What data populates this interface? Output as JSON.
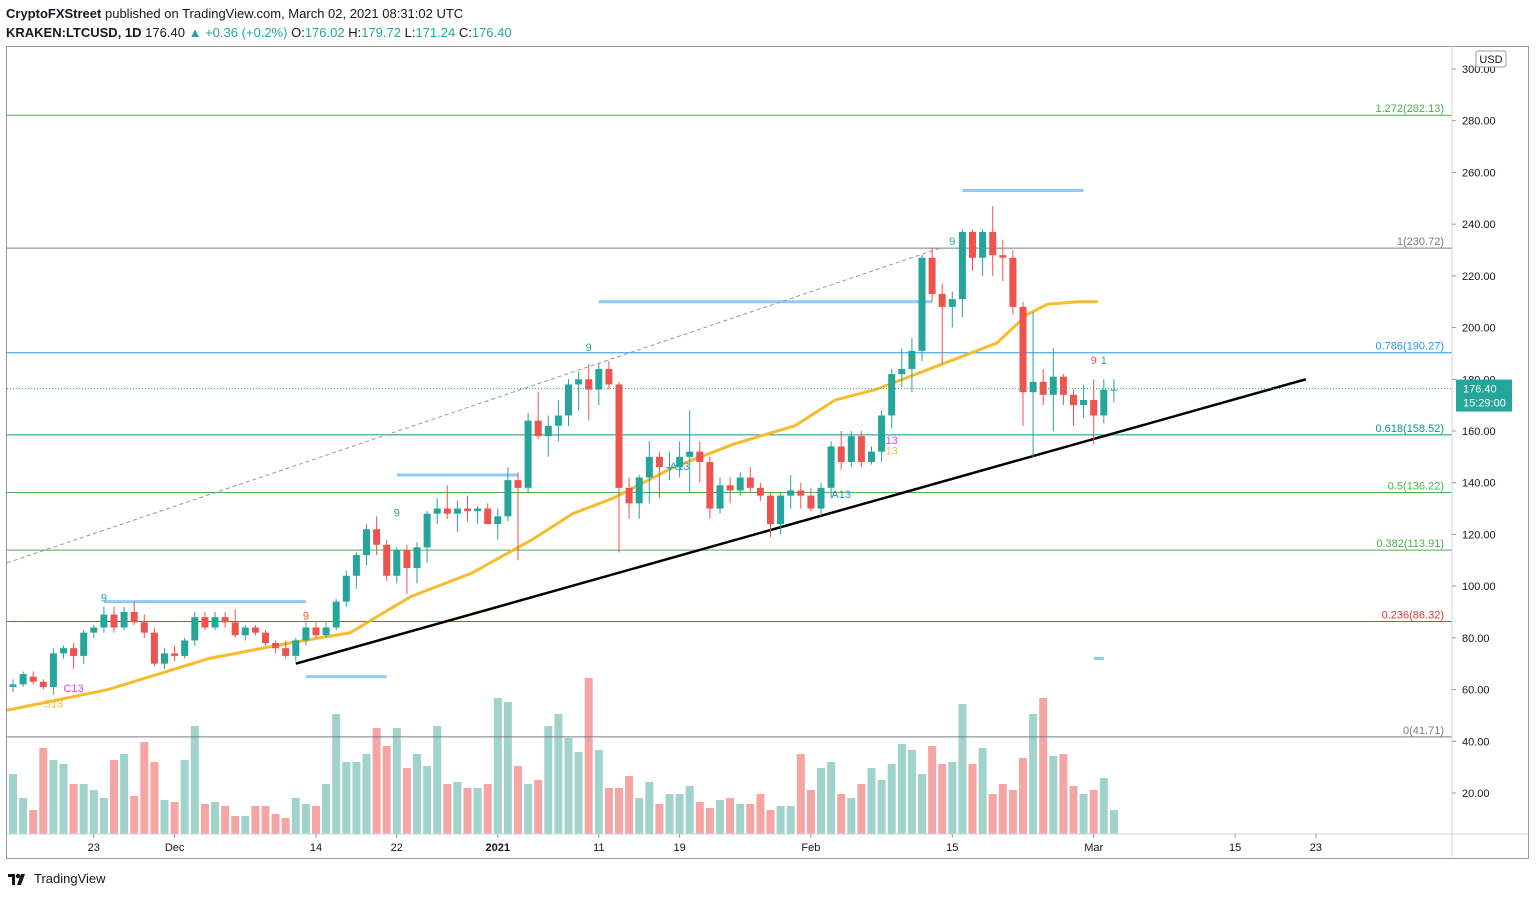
{
  "header": {
    "publisher": "CryptoFXStreet",
    "published_text": "published on TradingView.com, March 02, 2021 08:31:02 UTC",
    "symbol": "KRAKEN:LTCUSD, 1D",
    "last": "176.40",
    "change": "+0.36 (+0.2%)",
    "o_label": "O:",
    "o": "176.02",
    "h_label": "H:",
    "h": "179.72",
    "l_label": "L:",
    "l": "171.24",
    "c_label": "C:",
    "c": "176.40"
  },
  "footer": {
    "brand": "TradingView",
    "logo_icon": "tradingview-logo-icon"
  },
  "colors": {
    "up": "#26a69a",
    "down": "#ef5350",
    "ma": "#f7bb2d",
    "trend": "#000000",
    "fib_green": "#4caf50",
    "fib_blue": "#2196f3",
    "fib_red": "#e53935",
    "fib_gray": "#787b86",
    "teal": "#089981",
    "box": "#90caf9"
  },
  "chart_data": {
    "type": "candlestick",
    "currency_label": "USD",
    "ylim": [
      0,
      305
    ],
    "y_ticks": [
      20,
      40,
      60,
      80,
      100,
      120,
      140,
      160,
      180,
      200,
      220,
      240,
      260,
      280,
      300
    ],
    "y_tick_labels": [
      "20.00",
      "40.00",
      "60.00",
      "80.00",
      "100.00",
      "120.00",
      "140.00",
      "160.00",
      "180.00",
      "200.00",
      "220.00",
      "240.00",
      "260.00",
      "280.00",
      "300.00"
    ],
    "x_ticks": [
      {
        "label": "23",
        "day": 8
      },
      {
        "label": "Dec",
        "day": 16
      },
      {
        "label": "14",
        "day": 30
      },
      {
        "label": "22",
        "day": 38
      },
      {
        "label": "2021",
        "day": 48
      },
      {
        "label": "11",
        "day": 58
      },
      {
        "label": "19",
        "day": 66
      },
      {
        "label": "Feb",
        "day": 79
      },
      {
        "label": "15",
        "day": 93
      },
      {
        "label": "Mar",
        "day": 107
      },
      {
        "label": "15",
        "day": 121
      },
      {
        "label": "23",
        "day": 129
      }
    ],
    "last_price": {
      "value": 176.4,
      "label": "176.40",
      "countdown": "15:29:00"
    },
    "fib_levels": [
      {
        "ratio_label": "1.272",
        "value": 282.13,
        "price_label": "(282.13)",
        "color": "#4caf50"
      },
      {
        "ratio_label": "1",
        "value": 230.72,
        "price_label": "(230.72)",
        "color": "#787b86"
      },
      {
        "ratio_label": "0.786",
        "value": 190.27,
        "price_label": "(190.27)",
        "color": "#2196f3"
      },
      {
        "ratio_label": "0.618",
        "value": 158.52,
        "price_label": "(158.52)",
        "color": "#089981"
      },
      {
        "ratio_label": "0.5",
        "value": 136.22,
        "price_label": "(136.22)",
        "color": "#4caf50"
      },
      {
        "ratio_label": "0.382",
        "value": 113.91,
        "price_label": "(113.91)",
        "color": "#4caf50"
      },
      {
        "ratio_label": "0.236",
        "value": 86.32,
        "price_label": "(86.32)",
        "color": "#e53935"
      },
      {
        "ratio_label": "0",
        "value": 41.71,
        "price_label": "(41.71)",
        "color": "#787b86"
      }
    ],
    "trendline": {
      "start": [
        28,
        70
      ],
      "end": [
        128,
        180
      ]
    },
    "dashed_line": {
      "start": [
        0,
        109
      ],
      "end": [
        92,
        231
      ]
    },
    "resistance_boxes": [
      {
        "x0": 9,
        "x1": 29,
        "y": 94
      },
      {
        "x0": 29,
        "x1": 37,
        "y": 65
      },
      {
        "x0": 38,
        "x1": 50,
        "y": 143
      },
      {
        "x0": 58,
        "x1": 91,
        "y": 210
      },
      {
        "x0": 94,
        "x1": 106,
        "y": 253
      },
      {
        "x0": 107,
        "x1": 108,
        "y": 72
      }
    ],
    "td_labels": [
      {
        "text": "9",
        "day": 9,
        "y": 94,
        "color": "#26a69a"
      },
      {
        "text": "9",
        "day": 29,
        "y": 87,
        "color": "#ef5350"
      },
      {
        "text": "9",
        "day": 38,
        "y": 127,
        "color": "#26a69a"
      },
      {
        "text": "9",
        "day": 57,
        "y": 191,
        "color": "#26a69a"
      },
      {
        "text": "9",
        "day": 93,
        "y": 232,
        "color": "#26a69a"
      },
      {
        "text": "9",
        "day": 107,
        "y": 186,
        "color": "#ef5350"
      },
      {
        "text": "1",
        "day": 108,
        "y": 186,
        "color": "#26a69a"
      },
      {
        "text": "C13",
        "day": 6,
        "y": 59,
        "color": "#e040fb"
      },
      {
        "text": "S13",
        "day": 4,
        "y": 53,
        "color": "#f7bb2d"
      },
      {
        "text": "A13",
        "day": 66,
        "y": 145,
        "color": "#2196f3"
      },
      {
        "text": "A13",
        "day": 82,
        "y": 134,
        "color": "#2196f3"
      },
      {
        "text": "13",
        "day": 87,
        "y": 155,
        "color": "#e040fb"
      },
      {
        "text": "13",
        "day": 87,
        "y": 151,
        "color": "#f7bb2d"
      }
    ],
    "candles": [
      {
        "o": 61,
        "h": 64,
        "l": 59,
        "c": 62
      },
      {
        "o": 62,
        "h": 67,
        "l": 61,
        "c": 66
      },
      {
        "o": 65,
        "h": 67,
        "l": 62,
        "c": 63
      },
      {
        "o": 63,
        "h": 64,
        "l": 60,
        "c": 61
      },
      {
        "o": 61,
        "h": 76,
        "l": 58,
        "c": 74
      },
      {
        "o": 74,
        "h": 77,
        "l": 72,
        "c": 76
      },
      {
        "o": 76,
        "h": 78,
        "l": 68,
        "c": 73
      },
      {
        "o": 73,
        "h": 83,
        "l": 70,
        "c": 82
      },
      {
        "o": 82,
        "h": 85,
        "l": 80,
        "c": 84
      },
      {
        "o": 84,
        "h": 92,
        "l": 82,
        "c": 89
      },
      {
        "o": 89,
        "h": 92,
        "l": 82,
        "c": 84
      },
      {
        "o": 84,
        "h": 92,
        "l": 83,
        "c": 90
      },
      {
        "o": 90,
        "h": 94,
        "l": 85,
        "c": 86
      },
      {
        "o": 86,
        "h": 89,
        "l": 80,
        "c": 82
      },
      {
        "o": 82,
        "h": 84,
        "l": 69,
        "c": 70
      },
      {
        "o": 70,
        "h": 76,
        "l": 68,
        "c": 74
      },
      {
        "o": 74,
        "h": 77,
        "l": 71,
        "c": 73
      },
      {
        "o": 73,
        "h": 80,
        "l": 72,
        "c": 79
      },
      {
        "o": 79,
        "h": 90,
        "l": 77,
        "c": 88
      },
      {
        "o": 88,
        "h": 90,
        "l": 83,
        "c": 84
      },
      {
        "o": 84,
        "h": 90,
        "l": 83,
        "c": 88
      },
      {
        "o": 88,
        "h": 90,
        "l": 84,
        "c": 86
      },
      {
        "o": 86,
        "h": 91,
        "l": 80,
        "c": 81
      },
      {
        "o": 81,
        "h": 85,
        "l": 79,
        "c": 84
      },
      {
        "o": 84,
        "h": 85,
        "l": 81,
        "c": 82
      },
      {
        "o": 82,
        "h": 83,
        "l": 77,
        "c": 78
      },
      {
        "o": 78,
        "h": 79,
        "l": 74,
        "c": 76
      },
      {
        "o": 76,
        "h": 79,
        "l": 72,
        "c": 73
      },
      {
        "o": 73,
        "h": 80,
        "l": 71,
        "c": 79
      },
      {
        "o": 79,
        "h": 86,
        "l": 77,
        "c": 84
      },
      {
        "o": 84,
        "h": 86,
        "l": 80,
        "c": 81
      },
      {
        "o": 81,
        "h": 86,
        "l": 80,
        "c": 84
      },
      {
        "o": 84,
        "h": 95,
        "l": 83,
        "c": 94
      },
      {
        "o": 94,
        "h": 106,
        "l": 92,
        "c": 104
      },
      {
        "o": 104,
        "h": 113,
        "l": 99,
        "c": 112
      },
      {
        "o": 112,
        "h": 124,
        "l": 108,
        "c": 122
      },
      {
        "o": 122,
        "h": 127,
        "l": 112,
        "c": 116
      },
      {
        "o": 116,
        "h": 118,
        "l": 102,
        "c": 104
      },
      {
        "o": 104,
        "h": 115,
        "l": 101,
        "c": 114
      },
      {
        "o": 114,
        "h": 116,
        "l": 97,
        "c": 107
      },
      {
        "o": 107,
        "h": 117,
        "l": 101,
        "c": 115
      },
      {
        "o": 115,
        "h": 129,
        "l": 109,
        "c": 128
      },
      {
        "o": 128,
        "h": 134,
        "l": 124,
        "c": 130
      },
      {
        "o": 130,
        "h": 139,
        "l": 126,
        "c": 128
      },
      {
        "o": 128,
        "h": 133,
        "l": 121,
        "c": 130
      },
      {
        "o": 130,
        "h": 135,
        "l": 125,
        "c": 129
      },
      {
        "o": 129,
        "h": 131,
        "l": 124,
        "c": 130
      },
      {
        "o": 130,
        "h": 132,
        "l": 124,
        "c": 124
      },
      {
        "o": 124,
        "h": 130,
        "l": 118,
        "c": 127
      },
      {
        "o": 127,
        "h": 146,
        "l": 125,
        "c": 141
      },
      {
        "o": 141,
        "h": 144,
        "l": 110,
        "c": 138
      },
      {
        "o": 138,
        "h": 167,
        "l": 136,
        "c": 164
      },
      {
        "o": 164,
        "h": 175,
        "l": 157,
        "c": 158
      },
      {
        "o": 158,
        "h": 166,
        "l": 150,
        "c": 162
      },
      {
        "o": 162,
        "h": 172,
        "l": 156,
        "c": 166
      },
      {
        "o": 166,
        "h": 180,
        "l": 162,
        "c": 178
      },
      {
        "o": 178,
        "h": 183,
        "l": 168,
        "c": 180
      },
      {
        "o": 180,
        "h": 186,
        "l": 164,
        "c": 176
      },
      {
        "o": 176,
        "h": 186,
        "l": 170,
        "c": 184
      },
      {
        "o": 184,
        "h": 187,
        "l": 176,
        "c": 178
      },
      {
        "o": 178,
        "h": 179,
        "l": 113,
        "c": 138
      },
      {
        "o": 138,
        "h": 142,
        "l": 126,
        "c": 132
      },
      {
        "o": 132,
        "h": 143,
        "l": 126,
        "c": 142
      },
      {
        "o": 142,
        "h": 156,
        "l": 132,
        "c": 150
      },
      {
        "o": 150,
        "h": 152,
        "l": 134,
        "c": 146
      },
      {
        "o": 146,
        "h": 152,
        "l": 141,
        "c": 146
      },
      {
        "o": 146,
        "h": 156,
        "l": 142,
        "c": 150
      },
      {
        "o": 150,
        "h": 168,
        "l": 136,
        "c": 152
      },
      {
        "o": 152,
        "h": 156,
        "l": 140,
        "c": 148
      },
      {
        "o": 148,
        "h": 150,
        "l": 126,
        "c": 130
      },
      {
        "o": 130,
        "h": 142,
        "l": 128,
        "c": 139
      },
      {
        "o": 139,
        "h": 142,
        "l": 132,
        "c": 137
      },
      {
        "o": 137,
        "h": 144,
        "l": 135,
        "c": 142
      },
      {
        "o": 142,
        "h": 146,
        "l": 136,
        "c": 138
      },
      {
        "o": 138,
        "h": 140,
        "l": 133,
        "c": 135
      },
      {
        "o": 135,
        "h": 136,
        "l": 119,
        "c": 124
      },
      {
        "o": 124,
        "h": 136,
        "l": 120,
        "c": 135
      },
      {
        "o": 135,
        "h": 143,
        "l": 130,
        "c": 137
      },
      {
        "o": 137,
        "h": 140,
        "l": 130,
        "c": 135
      },
      {
        "o": 135,
        "h": 138,
        "l": 129,
        "c": 130
      },
      {
        "o": 130,
        "h": 140,
        "l": 127,
        "c": 138
      },
      {
        "o": 138,
        "h": 156,
        "l": 134,
        "c": 154
      },
      {
        "o": 154,
        "h": 160,
        "l": 145,
        "c": 148
      },
      {
        "o": 148,
        "h": 160,
        "l": 146,
        "c": 158
      },
      {
        "o": 158,
        "h": 160,
        "l": 146,
        "c": 148
      },
      {
        "o": 148,
        "h": 154,
        "l": 147,
        "c": 152
      },
      {
        "o": 152,
        "h": 168,
        "l": 148,
        "c": 166
      },
      {
        "o": 166,
        "h": 184,
        "l": 161,
        "c": 182
      },
      {
        "o": 182,
        "h": 192,
        "l": 177,
        "c": 184
      },
      {
        "o": 184,
        "h": 196,
        "l": 175,
        "c": 191
      },
      {
        "o": 191,
        "h": 228,
        "l": 187,
        "c": 227
      },
      {
        "o": 227,
        "h": 231,
        "l": 210,
        "c": 213
      },
      {
        "o": 213,
        "h": 217,
        "l": 186,
        "c": 208
      },
      {
        "o": 208,
        "h": 214,
        "l": 200,
        "c": 211
      },
      {
        "o": 211,
        "h": 238,
        "l": 204,
        "c": 237
      },
      {
        "o": 237,
        "h": 238,
        "l": 222,
        "c": 227
      },
      {
        "o": 227,
        "h": 238,
        "l": 220,
        "c": 237
      },
      {
        "o": 237,
        "h": 247,
        "l": 220,
        "c": 228
      },
      {
        "o": 228,
        "h": 234,
        "l": 218,
        "c": 227
      },
      {
        "o": 227,
        "h": 230,
        "l": 205,
        "c": 208
      },
      {
        "o": 208,
        "h": 210,
        "l": 162,
        "c": 175
      },
      {
        "o": 175,
        "h": 206,
        "l": 150,
        "c": 179
      },
      {
        "o": 179,
        "h": 184,
        "l": 170,
        "c": 174
      },
      {
        "o": 174,
        "h": 192,
        "l": 160,
        "c": 181
      },
      {
        "o": 181,
        "h": 182,
        "l": 170,
        "c": 174
      },
      {
        "o": 174,
        "h": 176,
        "l": 162,
        "c": 170
      },
      {
        "o": 170,
        "h": 178,
        "l": 165,
        "c": 172
      },
      {
        "o": 172,
        "h": 180,
        "l": 155,
        "c": 166
      },
      {
        "o": 166,
        "h": 180,
        "l": 163,
        "c": 176
      },
      {
        "o": 176,
        "h": 180,
        "l": 171,
        "c": 176
      }
    ],
    "volume": [
      30,
      18,
      12,
      43,
      37,
      35,
      25,
      25,
      22,
      18,
      37,
      40,
      19,
      46,
      36,
      17,
      16,
      37,
      54,
      15,
      16,
      14,
      9,
      9,
      14,
      14,
      10,
      8,
      18,
      15,
      14,
      25,
      60,
      36,
      36,
      40,
      53,
      44,
      53,
      33,
      40,
      34,
      54,
      25,
      26,
      23,
      23,
      25,
      68,
      66,
      34,
      25,
      27,
      54,
      60,
      48,
      41,
      78,
      42,
      23,
      23,
      29,
      18,
      26,
      15,
      20,
      20,
      24,
      16,
      13,
      17,
      18,
      15,
      15,
      20,
      12,
      14,
      14,
      40,
      22,
      33,
      36,
      20,
      18,
      25,
      33,
      27,
      35,
      45,
      42,
      30,
      44,
      35,
      36,
      65,
      35,
      43,
      20,
      25,
      22,
      38,
      60,
      68,
      39,
      40,
      24,
      20,
      22,
      28,
      12
    ],
    "ma": [
      [
        0,
        52
      ],
      [
        10,
        60
      ],
      [
        20,
        72
      ],
      [
        28,
        78
      ],
      [
        34,
        82
      ],
      [
        40,
        96
      ],
      [
        46,
        105
      ],
      [
        52,
        118
      ],
      [
        56,
        128
      ],
      [
        60,
        134
      ],
      [
        66,
        146
      ],
      [
        72,
        155
      ],
      [
        78,
        162
      ],
      [
        82,
        172
      ],
      [
        86,
        176
      ],
      [
        90,
        182
      ],
      [
        94,
        188
      ],
      [
        98,
        194
      ],
      [
        101,
        205
      ],
      [
        103,
        209
      ],
      [
        106,
        210
      ],
      [
        108,
        210
      ]
    ]
  }
}
